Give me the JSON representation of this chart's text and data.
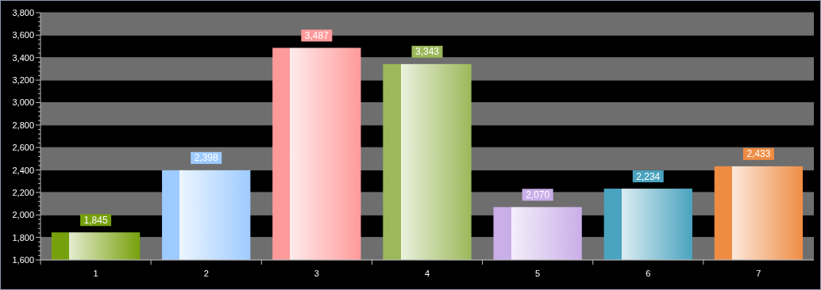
{
  "chart_data": {
    "type": "bar",
    "categories": [
      "1",
      "2",
      "3",
      "4",
      "5",
      "6",
      "7"
    ],
    "values": [
      1845,
      2398,
      3487,
      3343,
      2070,
      2234,
      2433
    ],
    "colors": [
      "#76a00c",
      "#9ecbff",
      "#ff9a9a",
      "#9bb85a",
      "#c9aee8",
      "#4aa3bf",
      "#ef8c44"
    ],
    "ylim": [
      1600,
      3800
    ],
    "yticks": [
      {
        "value": 1600,
        "label": "1,600"
      },
      {
        "value": 1800,
        "label": "1,800"
      },
      {
        "value": 2000,
        "label": "2,000"
      },
      {
        "value": 2200,
        "label": "2,200"
      },
      {
        "value": 2400,
        "label": "2,400"
      },
      {
        "value": 2600,
        "label": "2,600"
      },
      {
        "value": 2800,
        "label": "2,800"
      },
      {
        "value": 3000,
        "label": "3,000"
      },
      {
        "value": 3200,
        "label": "3,200"
      },
      {
        "value": 3400,
        "label": "3,400"
      },
      {
        "value": 3600,
        "label": "3,600"
      },
      {
        "value": 3800,
        "label": "3,800"
      }
    ],
    "value_labels": [
      "1,845",
      "2,398",
      "3,487",
      "3,343",
      "2,070",
      "2,234",
      "2,433"
    ],
    "grid": true
  }
}
